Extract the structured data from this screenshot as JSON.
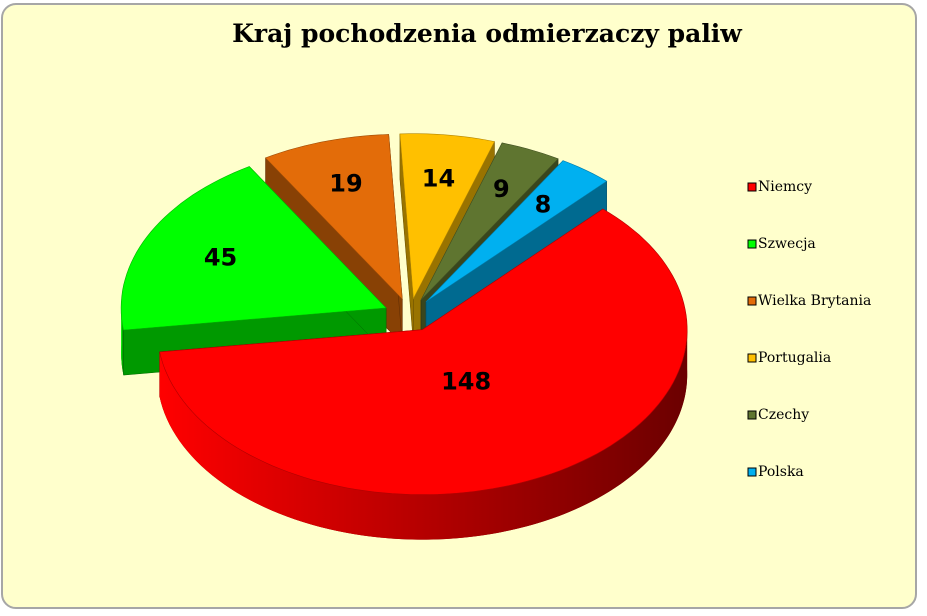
{
  "chart_data": {
    "type": "pie3d",
    "title": "Kraj pochodzenia odmierzaczy paliw",
    "categories": [
      "Niemcy",
      "Szwecja",
      "Wielka Brytania",
      "Portugalia",
      "Czechy",
      "Polska"
    ],
    "values": [
      148,
      45,
      19,
      14,
      9,
      8
    ],
    "colors": [
      "#ff0000",
      "#00ff00",
      "#e36c09",
      "#ffc000",
      "#5f7530",
      "#00b0f0"
    ],
    "legend": "right"
  }
}
